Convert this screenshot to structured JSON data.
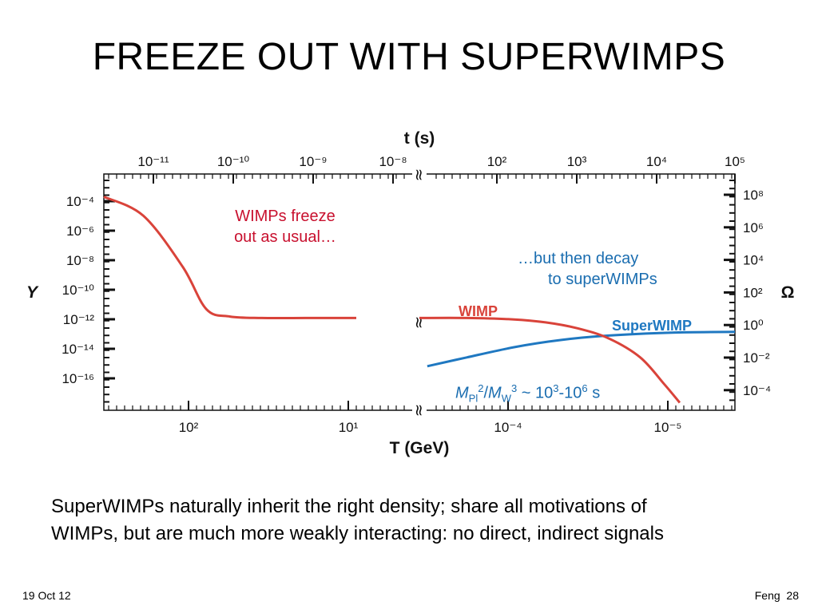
{
  "slide": {
    "title": "FREEZE OUT WITH SUPERWIMPS",
    "annotation_wimp": [
      "WIMPs freeze",
      "out as usual…"
    ],
    "annotation_decay": [
      "…but then decay",
      "to superWIMPs"
    ],
    "formula": {
      "M1": "M",
      "sub1": "Pl",
      "sup1": "2",
      "slash": "/",
      "M2": "M",
      "sub2": "W",
      "sup2": "3",
      "mid": " ~ 10",
      "sup3": "3",
      "dash": "-10",
      "sup4": "6",
      "tail": " s"
    },
    "body": [
      "SuperWIMPs naturally inherit the right density; share all motivations of",
      "WIMPs, but are much more weakly interacting: no direct, indirect signals"
    ],
    "footer_left": "19 Oct 12",
    "footer_right": "Feng  28"
  },
  "chart_data": {
    "type": "line",
    "top_axis": {
      "label": "t (s)",
      "ticks": [
        "10⁻¹¹",
        "10⁻¹⁰",
        "10⁻⁹",
        "10⁻⁸",
        "10²",
        "10³",
        "10⁴",
        "10⁵"
      ],
      "break_symbol": "≈"
    },
    "bottom_axis": {
      "label": "T (GeV)",
      "ticks": [
        "10²",
        "10¹",
        "10⁻⁴",
        "10⁻⁵"
      ],
      "break_symbol": "≈"
    },
    "left_axis": {
      "label": "Y",
      "ticks": [
        "10⁻⁴",
        "10⁻⁶",
        "10⁻⁸",
        "10⁻¹⁰",
        "10⁻¹²",
        "10⁻¹⁴",
        "10⁻¹⁶"
      ]
    },
    "right_axis": {
      "label": "Ω",
      "ticks": [
        "10⁸",
        "10⁶",
        "10⁴",
        "10²",
        "10⁰",
        "10⁻²",
        "10⁻⁴"
      ]
    },
    "series": [
      {
        "name": "WIMP",
        "color": "#d9433a",
        "points": [
          [
            0,
            -3.7
          ],
          [
            0.25,
            -5.0
          ],
          [
            0.5,
            -8.5
          ],
          [
            0.65,
            -11.4
          ],
          [
            0.8,
            -11.9
          ],
          [
            1.0,
            -12.0
          ],
          [
            1.3,
            -12.0
          ],
          [
            1.6,
            -12.0
          ],
          [
            2.0,
            -12.0
          ],
          [
            2.3,
            -12.0
          ],
          [
            2.6,
            -12.1
          ],
          [
            2.8,
            -12.3
          ],
          [
            3.0,
            -12.7
          ],
          [
            3.2,
            -13.4
          ],
          [
            3.4,
            -14.7
          ],
          [
            3.55,
            -16.5
          ],
          [
            3.65,
            -17.8
          ]
        ]
      },
      {
        "name": "SuperWIMP",
        "color": "#1f78c1",
        "points": [
          [
            2.05,
            -15.3
          ],
          [
            2.3,
            -14.7
          ],
          [
            2.6,
            -14.0
          ],
          [
            2.9,
            -13.5
          ],
          [
            3.2,
            -13.2
          ],
          [
            3.6,
            -13.0
          ],
          [
            4.0,
            -12.95
          ]
        ]
      }
    ],
    "colors": {
      "wimp": "#d9433a",
      "superwimp": "#1f78c1",
      "axis": "#111111"
    }
  }
}
